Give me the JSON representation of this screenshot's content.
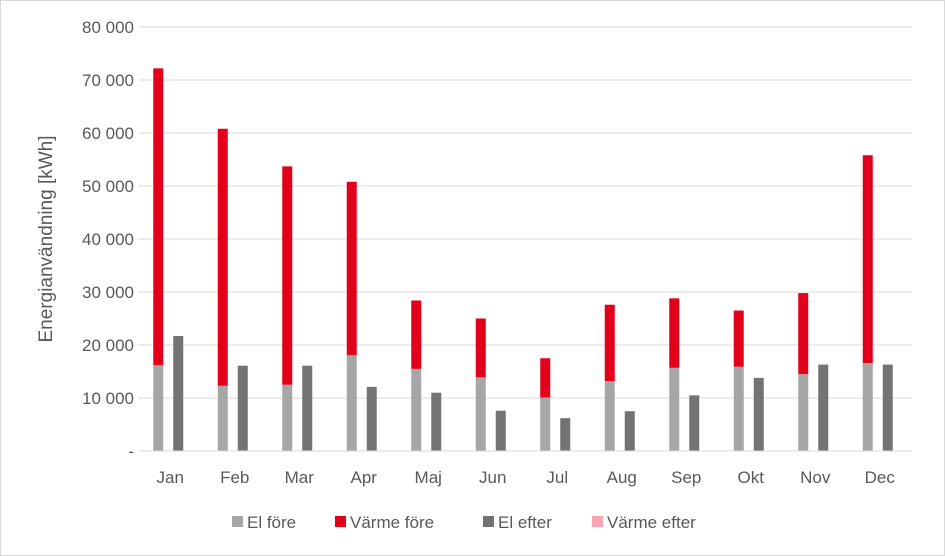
{
  "chart_data": {
    "type": "bar",
    "stacked_groups": [
      [
        "El före",
        "Värme före"
      ],
      [
        "El efter",
        "Värme efter"
      ]
    ],
    "categories": [
      "Jan",
      "Feb",
      "Mar",
      "Apr",
      "Maj",
      "Jun",
      "Jul",
      "Aug",
      "Sep",
      "Okt",
      "Nov",
      "Dec"
    ],
    "series": [
      {
        "name": "El före",
        "color": "#a6a6a6",
        "values": [
          16200,
          12300,
          12500,
          18100,
          15500,
          13900,
          10100,
          13200,
          15700,
          15900,
          14500,
          16600
        ]
      },
      {
        "name": "Värme före",
        "color": "#e3001b",
        "values": [
          56000,
          48500,
          41200,
          32700,
          12900,
          11100,
          7400,
          14400,
          13100,
          10600,
          15300,
          39200
        ]
      },
      {
        "name": "El efter",
        "color": "#737373",
        "values": [
          21700,
          16100,
          16100,
          12100,
          11000,
          7600,
          6200,
          7500,
          10500,
          13800,
          16300,
          16300
        ]
      },
      {
        "name": "Värme efter",
        "color": "#f4a6b5",
        "values": [
          0,
          0,
          0,
          0,
          0,
          0,
          0,
          0,
          0,
          0,
          0,
          0
        ]
      }
    ],
    "ylabel": "Energianvändning [kWh]",
    "xlabel": "",
    "title": "",
    "ylim": [
      0,
      80000
    ],
    "yticks": [
      "-",
      "10 000",
      "20 000",
      "30 000",
      "40 000",
      "50 000",
      "60 000",
      "70 000",
      "80 000"
    ],
    "grid": true,
    "legend_position": "bottom"
  }
}
